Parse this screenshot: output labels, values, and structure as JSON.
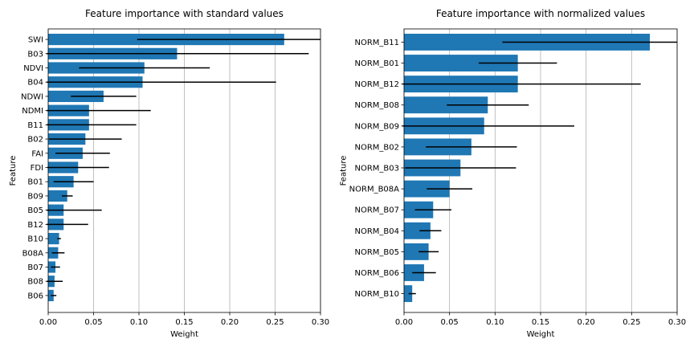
{
  "colors": {
    "bar": "#1f77b4",
    "error": "#000000",
    "grid": "#b0b0b0",
    "axis": "#000000"
  },
  "chart_data": [
    {
      "type": "bar",
      "orientation": "horizontal",
      "title": "Feature importance with standard values",
      "xlabel": "Weight",
      "ylabel": "Feature",
      "xlim": [
        0,
        0.3
      ],
      "xticks": [
        "0.00",
        "0.05",
        "0.10",
        "0.15",
        "0.20",
        "0.25",
        "0.30"
      ],
      "grid": "vertical",
      "categories": [
        "SWI",
        "B03",
        "NDVI",
        "B04",
        "NDWI",
        "NDMI",
        "B11",
        "B02",
        "FAI",
        "FDI",
        "B01",
        "B09",
        "B05",
        "B12",
        "B10",
        "B08A",
        "B07",
        "B08",
        "B06"
      ],
      "values": [
        0.26,
        0.142,
        0.106,
        0.104,
        0.061,
        0.045,
        0.045,
        0.041,
        0.038,
        0.033,
        0.028,
        0.021,
        0.017,
        0.017,
        0.012,
        0.011,
        0.008,
        0.007,
        0.006
      ],
      "errors": [
        0.162,
        0.145,
        0.072,
        0.147,
        0.036,
        0.068,
        0.052,
        0.04,
        0.03,
        0.034,
        0.022,
        0.006,
        0.042,
        0.027,
        0.002,
        0.007,
        0.005,
        0.009,
        0.003
      ]
    },
    {
      "type": "bar",
      "orientation": "horizontal",
      "title": "Feature importance with normalized values",
      "xlabel": "Weight",
      "ylabel": "Feature",
      "xlim": [
        0,
        0.3
      ],
      "xticks": [
        "0.00",
        "0.05",
        "0.10",
        "0.15",
        "0.20",
        "0.25",
        "0.30"
      ],
      "grid": "vertical",
      "categories": [
        "NORM_B11",
        "NORM_B01",
        "NORM_B12",
        "NORM_B08",
        "NORM_B09",
        "NORM_B02",
        "NORM_B03",
        "NORM_B08A",
        "NORM_B07",
        "NORM_B04",
        "NORM_B05",
        "NORM_B06",
        "NORM_B10"
      ],
      "values": [
        0.27,
        0.125,
        0.125,
        0.092,
        0.088,
        0.074,
        0.062,
        0.05,
        0.032,
        0.029,
        0.027,
        0.022,
        0.009
      ],
      "errors": [
        0.162,
        0.043,
        0.135,
        0.045,
        0.099,
        0.05,
        0.061,
        0.025,
        0.02,
        0.012,
        0.011,
        0.013,
        0.004
      ]
    }
  ]
}
